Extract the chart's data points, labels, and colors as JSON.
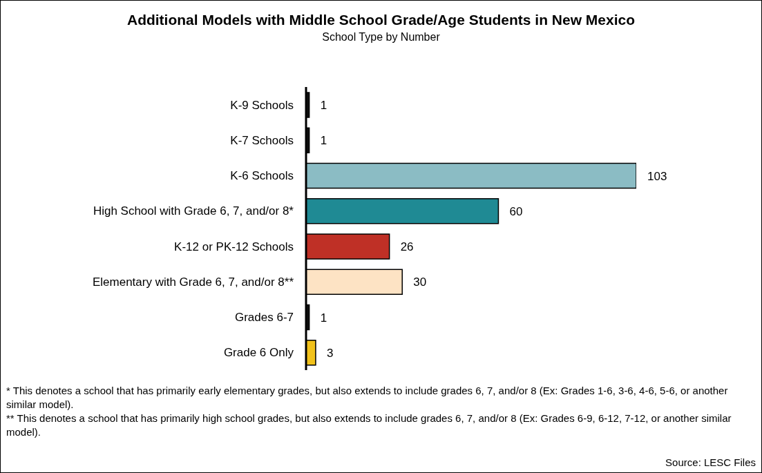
{
  "chart_data": {
    "type": "bar",
    "orientation": "horizontal",
    "title": "Additional Models with Middle School Grade/Age Students in New Mexico",
    "subtitle": "School Type by Number",
    "categories": [
      "K-9 Schools",
      "K-7 Schools",
      "K-6 Schools",
      "High School with Grade 6, 7, and/or 8*",
      "K-12 or PK-12 Schools",
      "Elementary with Grade 6, 7, and/or 8**",
      "Grades 6-7",
      "Grade 6 Only"
    ],
    "values": [
      1,
      1,
      103,
      60,
      26,
      30,
      1,
      3
    ],
    "colors": [
      "#111111",
      "#111111",
      "#8bbcc4",
      "#1f8a94",
      "#bf3026",
      "#fde3c4",
      "#111111",
      "#f2c21b"
    ],
    "data_labels": true,
    "annotations": [
      "* This denotes a school that has primarily early elementary grades, but also extends to include grades 6, 7, and/or 8 (Ex: Grades 1-6, 3-6, 4-6, 5-6, or another similar model).",
      "** This denotes a school that has primarily high school grades, but also extends to include grades 6, 7, and/or 8 (Ex: Grades 6-9, 6-12, 7-12, or another similar model).",
      "Source: LESC Files"
    ]
  }
}
